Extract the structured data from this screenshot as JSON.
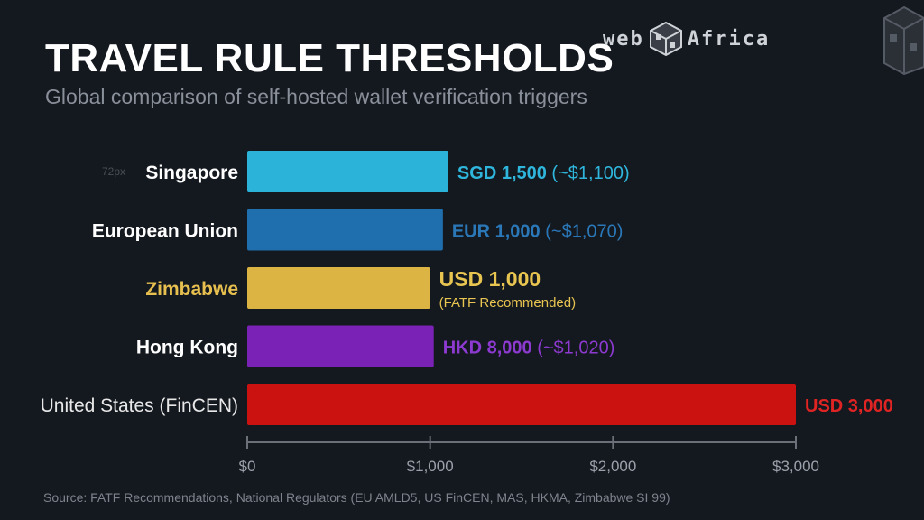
{
  "title": "TRAVEL RULE THRESHOLDS",
  "subtitle": "Global comparison of self-hosted wallet verification triggers",
  "logo_text": {
    "left": "web",
    "right": "Africa"
  },
  "ghost_label": "72px",
  "source": "Source: FATF Recommendations, National Regulators (EU AMLD5, US FinCEN, MAS, HKMA, Zimbabwe SI 99)",
  "chart_data": {
    "type": "bar",
    "orientation": "horizontal",
    "categories": [
      "Singapore",
      "European Union",
      "Zimbabwe",
      "Hong Kong",
      "United States (FinCEN)"
    ],
    "values": [
      1100,
      1070,
      1000,
      1020,
      3000
    ],
    "bar_colors": [
      "#2bb3d9",
      "#1f6fae",
      "#dcb443",
      "#7a22b6",
      "#cc1111"
    ],
    "category_label_colors": [
      "#ffffff",
      "#ffffff",
      "#e6bf4f",
      "#ffffff",
      "#e8e8e8"
    ],
    "value_label_colors": [
      "#2fb6dc",
      "#2a78b8",
      "#e8c450",
      "#8d3ad0",
      "#e02424"
    ],
    "value_labels": [
      {
        "main": "SGD 1,500",
        "extra": "(~$1,100)"
      },
      {
        "main": "EUR 1,000",
        "extra": "(~$1,070)"
      },
      {
        "main": "USD 1,000",
        "note": "(FATF Recommended)"
      },
      {
        "main": "HKD 8,000",
        "extra": "(~$1,020)"
      },
      {
        "main": "USD 3,000"
      }
    ],
    "xlim": [
      0,
      3000
    ],
    "xticks": [
      0,
      1000,
      2000,
      3000
    ],
    "xtick_labels": [
      "$0",
      "$1,000",
      "$2,000",
      "$3,000"
    ],
    "grid": false
  }
}
